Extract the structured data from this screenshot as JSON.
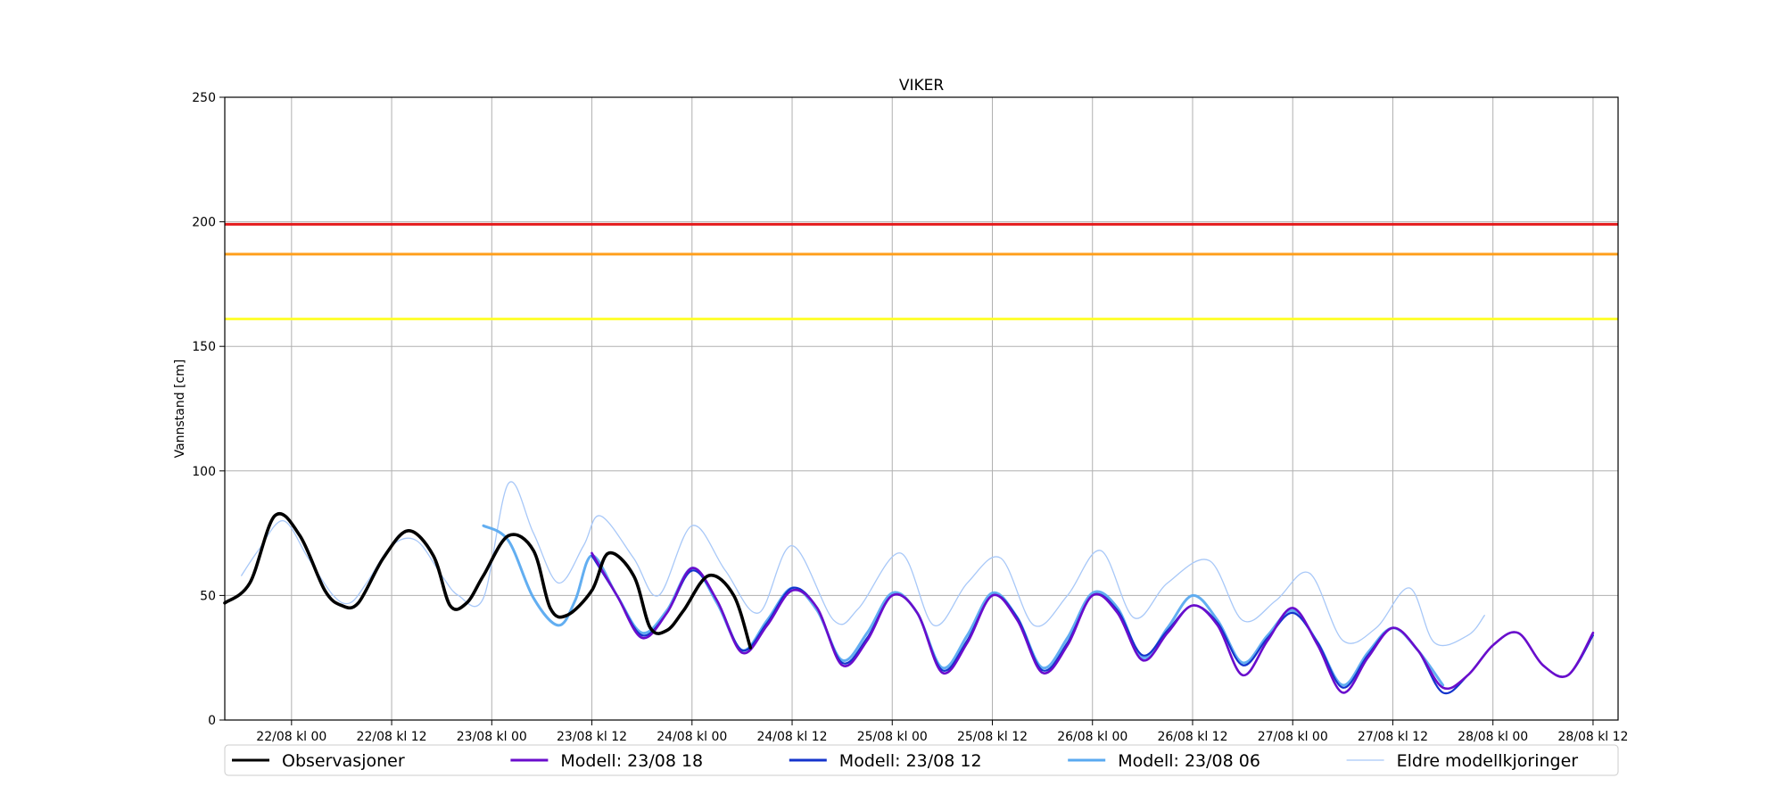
{
  "chart_data": {
    "type": "line",
    "title": "VIKER",
    "xlabel": "",
    "ylabel": "Vannstand [cm]",
    "ylim": [
      0,
      250
    ],
    "xlim": [
      "21/08 kl 16",
      "28/08 kl 15"
    ],
    "x_ticks": [
      "22/08 kl 00",
      "22/08 kl 12",
      "23/08 kl 00",
      "23/08 kl 12",
      "24/08 kl 00",
      "24/08 kl 12",
      "25/08 kl 00",
      "25/08 kl 12",
      "26/08 kl 00",
      "26/08 kl 12",
      "27/08 kl 00",
      "27/08 kl 12",
      "28/08 kl 00",
      "28/08 kl 12"
    ],
    "y_ticks": [
      0,
      50,
      100,
      150,
      200,
      250
    ],
    "grid": true,
    "legend_position": "bottom",
    "thresholds": [
      {
        "value": 199,
        "color": "#e41a1c"
      },
      {
        "value": 187,
        "color": "#ff9f1c"
      },
      {
        "value": 161,
        "color": "#ffff33"
      }
    ],
    "series": [
      {
        "name": "Observasjoner",
        "color": "#000000",
        "x": [
          "21/08 kl 16",
          "21/08 kl 19",
          "21/08 kl 22",
          "22/08 kl 01",
          "22/08 kl 04",
          "22/08 kl 06",
          "22/08 kl 08",
          "22/08 kl 11",
          "22/08 kl 14",
          "22/08 kl 17",
          "22/08 kl 19",
          "22/08 kl 21",
          "22/08 kl 23",
          "23/08 kl 02",
          "23/08 kl 05",
          "23/08 kl 07",
          "23/08 kl 09",
          "23/08 kl 12",
          "23/08 kl 14",
          "23/08 kl 17",
          "23/08 kl 19",
          "23/08 kl 21",
          "23/08 kl 23",
          "24/08 kl 02",
          "24/08 kl 05",
          "24/08 kl 07"
        ],
        "y": [
          47,
          55,
          82,
          74,
          52,
          46,
          47,
          65,
          76,
          66,
          46,
          47,
          58,
          74,
          68,
          45,
          42,
          52,
          67,
          58,
          37,
          36,
          44,
          58,
          50,
          29
        ]
      },
      {
        "name": "Modell: 23/08 18",
        "color": "#6a0dcc",
        "x": [
          "23/08 kl 12",
          "23/08 kl 15",
          "23/08 kl 18",
          "23/08 kl 21",
          "24/08 kl 00",
          "24/08 kl 03",
          "24/08 kl 06",
          "24/08 kl 09",
          "24/08 kl 12",
          "24/08 kl 15",
          "24/08 kl 18",
          "24/08 kl 21",
          "25/08 kl 00",
          "25/08 kl 03",
          "25/08 kl 06",
          "25/08 kl 09",
          "25/08 kl 12",
          "25/08 kl 15",
          "25/08 kl 18",
          "25/08 kl 21",
          "26/08 kl 00",
          "26/08 kl 03",
          "26/08 kl 06",
          "26/08 kl 09",
          "26/08 kl 12",
          "26/08 kl 15",
          "26/08 kl 18",
          "26/08 kl 21",
          "27/08 kl 00",
          "27/08 kl 03",
          "27/08 kl 06",
          "27/08 kl 09",
          "27/08 kl 12",
          "27/08 kl 15",
          "27/08 kl 18",
          "27/08 kl 21",
          "28/08 kl 00",
          "28/08 kl 03",
          "28/08 kl 06",
          "28/08 kl 09",
          "28/08 kl 12"
        ],
        "y": [
          67,
          50,
          33,
          43,
          61,
          48,
          27,
          38,
          52,
          45,
          22,
          32,
          50,
          43,
          19,
          31,
          50,
          40,
          19,
          30,
          50,
          43,
          24,
          35,
          46,
          38,
          18,
          32,
          45,
          30,
          11,
          25,
          37,
          28,
          13,
          18,
          30,
          35,
          22,
          18,
          35
        ]
      },
      {
        "name": "Modell: 23/08 12",
        "color": "#1434cc",
        "x": [
          "23/08 kl 12",
          "23/08 kl 15",
          "23/08 kl 18",
          "23/08 kl 21",
          "24/08 kl 00",
          "24/08 kl 03",
          "24/08 kl 06",
          "24/08 kl 09",
          "24/08 kl 12",
          "24/08 kl 15",
          "24/08 kl 18",
          "24/08 kl 21",
          "25/08 kl 00",
          "25/08 kl 03",
          "25/08 kl 06",
          "25/08 kl 09",
          "25/08 kl 12",
          "25/08 kl 15",
          "25/08 kl 18",
          "25/08 kl 21",
          "26/08 kl 00",
          "26/08 kl 03",
          "26/08 kl 06",
          "26/08 kl 09",
          "26/08 kl 12",
          "26/08 kl 15",
          "26/08 kl 18",
          "26/08 kl 21",
          "27/08 kl 00",
          "27/08 kl 03",
          "27/08 kl 06",
          "27/08 kl 09",
          "27/08 kl 12",
          "27/08 kl 15",
          "27/08 kl 18",
          "27/08 kl 21",
          "28/08 kl 00",
          "28/08 kl 03",
          "28/08 kl 06",
          "28/08 kl 09",
          "28/08 kl 12"
        ],
        "y": [
          66,
          50,
          34,
          43,
          60,
          48,
          28,
          39,
          53,
          45,
          23,
          33,
          50,
          43,
          20,
          32,
          50,
          41,
          20,
          31,
          50,
          44,
          26,
          36,
          46,
          39,
          22,
          33,
          43,
          31,
          13,
          26,
          37,
          28,
          11,
          18,
          30,
          35,
          22,
          18,
          34
        ]
      },
      {
        "name": "Modell: 23/08 06",
        "color": "#5aaaf0",
        "x": [
          "22/08 kl 23",
          "23/08 kl 02",
          "23/08 kl 05",
          "23/08 kl 08",
          "23/08 kl 10",
          "23/08 kl 12",
          "23/08 kl 15",
          "23/08 kl 18",
          "23/08 kl 21",
          "24/08 kl 00",
          "24/08 kl 03",
          "24/08 kl 06",
          "24/08 kl 09",
          "24/08 kl 12",
          "24/08 kl 15",
          "24/08 kl 18",
          "24/08 kl 21",
          "25/08 kl 00",
          "25/08 kl 03",
          "25/08 kl 06",
          "25/08 kl 09",
          "25/08 kl 12",
          "25/08 kl 15",
          "25/08 kl 18",
          "25/08 kl 21",
          "26/08 kl 00",
          "26/08 kl 03",
          "26/08 kl 06",
          "26/08 kl 09",
          "26/08 kl 12",
          "26/08 kl 15",
          "26/08 kl 18",
          "26/08 kl 21",
          "27/08 kl 00",
          "27/08 kl 03",
          "27/08 kl 06",
          "27/08 kl 09",
          "27/08 kl 12",
          "27/08 kl 15",
          "27/08 kl 18"
        ],
        "y": [
          78,
          72,
          49,
          38,
          48,
          66,
          50,
          35,
          44,
          61,
          47,
          28,
          40,
          53,
          44,
          24,
          35,
          51,
          43,
          21,
          34,
          51,
          41,
          21,
          33,
          51,
          45,
          25,
          37,
          50,
          40,
          23,
          34,
          44,
          31,
          14,
          27,
          37,
          28,
          14
        ]
      },
      {
        "name": "Eldre modellkjoringer",
        "color": "#a8c8f8",
        "x": [
          "21/08 kl 18",
          "21/08 kl 20",
          "21/08 kl 23",
          "22/08 kl 02",
          "22/08 kl 05",
          "22/08 kl 07",
          "22/08 kl 09",
          "22/08 kl 12",
          "22/08 kl 15",
          "22/08 kl 18",
          "22/08 kl 20",
          "22/08 kl 23",
          "23/08 kl 02",
          "23/08 kl 05",
          "23/08 kl 08",
          "23/08 kl 11",
          "23/08 kl 13",
          "23/08 kl 17",
          "23/08 kl 20",
          "24/08 kl 00",
          "24/08 kl 04",
          "24/08 kl 08",
          "24/08 kl 12",
          "24/08 kl 17",
          "24/08 kl 20",
          "25/08 kl 01",
          "25/08 kl 05",
          "25/08 kl 09",
          "25/08 kl 13",
          "25/08 kl 17",
          "25/08 kl 21",
          "26/08 kl 01",
          "26/08 kl 05",
          "26/08 kl 09",
          "26/08 kl 14",
          "26/08 kl 18",
          "26/08 kl 22",
          "27/08 kl 02",
          "27/08 kl 06",
          "27/08 kl 10",
          "27/08 kl 14",
          "27/08 kl 17",
          "27/08 kl 21",
          "27/08 kl 23"
        ],
        "y": [
          58,
          68,
          80,
          65,
          50,
          47,
          55,
          70,
          72,
          58,
          50,
          49,
          95,
          75,
          55,
          70,
          82,
          65,
          50,
          78,
          60,
          43,
          70,
          40,
          45,
          67,
          38,
          55,
          65,
          38,
          50,
          68,
          41,
          55,
          64,
          40,
          48,
          59,
          32,
          37,
          53,
          31,
          34,
          42
        ]
      }
    ]
  }
}
